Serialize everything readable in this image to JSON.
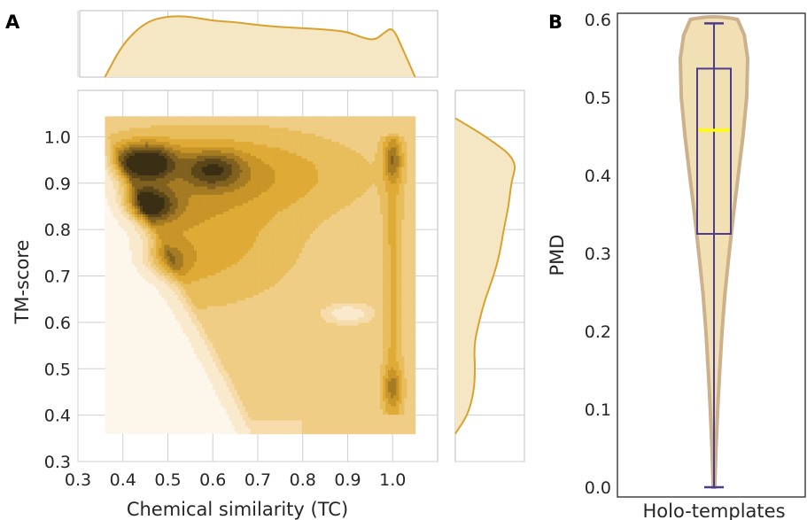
{
  "colors": {
    "accent": "#d9a22e",
    "fill_light": "#f5e6c4",
    "violin_fill": "#f2e0b5",
    "violin_edge": "#cdb08c",
    "box_line": "#4b3c8c",
    "median": "#ffff00",
    "density_levels": [
      "#fdf6ea",
      "#faeacd",
      "#f5dcaa",
      "#efcd85",
      "#e8bd5c",
      "#dfab36",
      "#c89528",
      "#a57b23",
      "#80611f",
      "#5b461a",
      "#3a2e14"
    ]
  },
  "chart_data": [
    {
      "panel": "A",
      "type": "heatmap",
      "subtype": "joint-kde",
      "xlabel": "Chemical similarity (TC)",
      "ylabel": "TM-score",
      "xlim": [
        0.3,
        1.1
      ],
      "ylim": [
        0.3,
        1.1
      ],
      "xticks": [
        "0.3",
        "0.4",
        "0.5",
        "0.6",
        "0.7",
        "0.8",
        "0.9",
        "1.0"
      ],
      "yticks": [
        "0.3",
        "0.4",
        "0.5",
        "0.6",
        "0.7",
        "0.8",
        "0.9",
        "1.0"
      ],
      "grid": true,
      "density_peaks": [
        {
          "x": 0.45,
          "y": 0.945,
          "level": 1.0
        },
        {
          "x": 0.45,
          "y": 0.855,
          "level": 0.9
        },
        {
          "x": 0.47,
          "y": 0.73,
          "level": 0.55
        },
        {
          "x": 0.6,
          "y": 0.93,
          "level": 0.55
        },
        {
          "x": 1.0,
          "y": 0.95,
          "level": 0.3
        },
        {
          "x": 1.0,
          "y": 0.46,
          "level": 0.25
        }
      ],
      "marginal_x": {
        "x": [
          0.36,
          0.4,
          0.45,
          0.5,
          0.55,
          0.6,
          0.65,
          0.7,
          0.75,
          0.8,
          0.85,
          0.9,
          0.93,
          0.96,
          0.98,
          1.0,
          1.02,
          1.05
        ],
        "density": [
          0.0,
          0.55,
          0.9,
          1.0,
          0.99,
          0.92,
          0.9,
          0.85,
          0.82,
          0.8,
          0.78,
          0.74,
          0.65,
          0.6,
          0.72,
          0.82,
          0.5,
          0.0
        ]
      },
      "marginal_y": {
        "y": [
          0.36,
          0.4,
          0.45,
          0.5,
          0.55,
          0.6,
          0.65,
          0.7,
          0.75,
          0.8,
          0.85,
          0.9,
          0.95,
          1.0,
          1.04
        ],
        "density": [
          0.0,
          0.2,
          0.3,
          0.32,
          0.3,
          0.38,
          0.48,
          0.62,
          0.72,
          0.78,
          0.86,
          0.9,
          1.0,
          0.5,
          0.0
        ]
      }
    },
    {
      "panel": "B",
      "type": "violin",
      "ylabel": "PMD",
      "category": "Holo-templates",
      "ylim": [
        0.0,
        0.6
      ],
      "yticks": [
        "0.0",
        "0.1",
        "0.2",
        "0.3",
        "0.4",
        "0.5",
        "0.6"
      ],
      "box": {
        "min": 0.0,
        "q1": 0.325,
        "median": 0.458,
        "q3": 0.537,
        "max": 0.595
      },
      "violin_profile": {
        "y": [
          0.0,
          0.05,
          0.1,
          0.15,
          0.2,
          0.25,
          0.3,
          0.35,
          0.4,
          0.45,
          0.5,
          0.55,
          0.58,
          0.6
        ],
        "half_width": [
          0.02,
          0.06,
          0.11,
          0.17,
          0.24,
          0.33,
          0.45,
          0.58,
          0.72,
          0.86,
          0.97,
          1.0,
          0.9,
          0.7
        ]
      }
    }
  ]
}
